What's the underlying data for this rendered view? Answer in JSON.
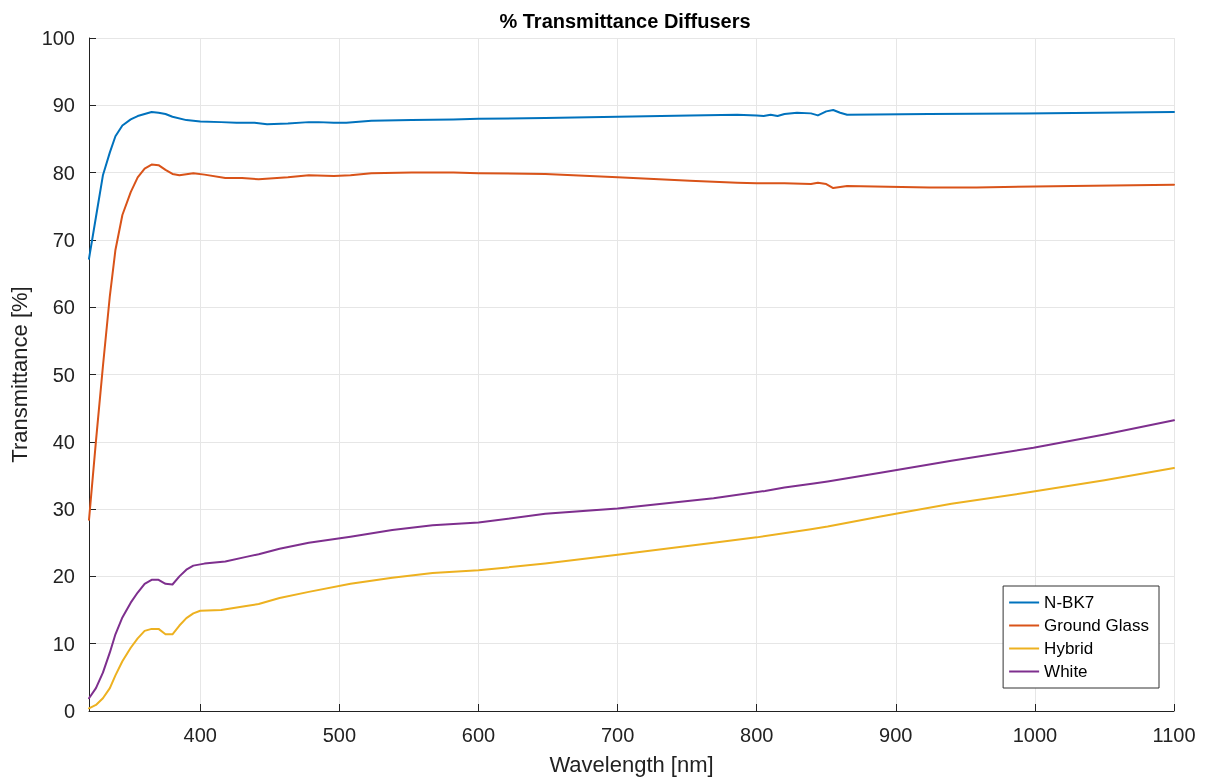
{
  "chart_data": {
    "type": "line",
    "title": "% Transmittance Diffusers",
    "xlabel": "Wavelength [nm]",
    "ylabel": "Transmittance [%]",
    "xlim": [
      320,
      1100
    ],
    "xticks": [
      400,
      500,
      600,
      700,
      800,
      900,
      1000,
      1100
    ],
    "ylim": [
      0,
      100
    ],
    "yticks": [
      0,
      10,
      20,
      30,
      40,
      50,
      60,
      70,
      80,
      90,
      100
    ],
    "grid": true,
    "legend": "bottom right",
    "marker": "none",
    "line_style": "solid",
    "series": [
      {
        "name": "N-BK7",
        "color": "#0072bd",
        "x": [
          320,
          325,
          330,
          335,
          339,
          344,
          350,
          355,
          360,
          365,
          370,
          375,
          380,
          390,
          400,
          415,
          426,
          439,
          448,
          463,
          478,
          485,
          496,
          505,
          523,
          552,
          582,
          600,
          648,
          700,
          752,
          786,
          800,
          805,
          810,
          815,
          820,
          829,
          839,
          844,
          850,
          855,
          860,
          865,
          924,
          992,
          1100
        ],
        "values": [
          67.2,
          73.4,
          79.6,
          83.0,
          85.4,
          87.0,
          87.9,
          88.4,
          88.7,
          89.0,
          88.9,
          88.7,
          88.3,
          87.8,
          87.6,
          87.5,
          87.4,
          87.4,
          87.2,
          87.3,
          87.5,
          87.5,
          87.4,
          87.4,
          87.7,
          87.8,
          87.9,
          88.0,
          88.1,
          88.3,
          88.5,
          88.6,
          88.5,
          88.4,
          88.6,
          88.4,
          88.7,
          88.9,
          88.8,
          88.5,
          89.1,
          89.3,
          88.9,
          88.6,
          88.7,
          88.8,
          89.0
        ]
      },
      {
        "name": "Ground Glass",
        "color": "#d95319",
        "x": [
          320,
          325,
          330,
          335,
          339,
          344,
          350,
          355,
          360,
          365,
          370,
          375,
          380,
          385,
          395,
          403,
          418,
          430,
          442,
          463,
          478,
          496,
          508,
          523,
          552,
          582,
          600,
          648,
          700,
          752,
          786,
          800,
          820,
          839,
          844,
          850,
          855,
          865,
          924,
          958,
          1027,
          1100
        ],
        "values": [
          28.4,
          40.1,
          51.2,
          61.7,
          68.5,
          73.7,
          77.1,
          79.3,
          80.6,
          81.2,
          81.1,
          80.4,
          79.8,
          79.6,
          79.9,
          79.7,
          79.2,
          79.2,
          79.0,
          79.3,
          79.6,
          79.5,
          79.6,
          79.9,
          80.0,
          80.0,
          79.9,
          79.8,
          79.3,
          78.8,
          78.5,
          78.4,
          78.4,
          78.3,
          78.5,
          78.3,
          77.7,
          78.0,
          77.8,
          77.8,
          78.0,
          78.2
        ]
      },
      {
        "name": "Hybrid",
        "color": "#edb120",
        "x": [
          320,
          325,
          330,
          335,
          339,
          344,
          350,
          355,
          360,
          365,
          370,
          375,
          380,
          385,
          390,
          395,
          400,
          415,
          433,
          442,
          457,
          478,
          508,
          538,
          567,
          600,
          648,
          700,
          769,
          800,
          839,
          851,
          889,
          940,
          999,
          1050,
          1100
        ],
        "values": [
          0.4,
          0.9,
          1.9,
          3.4,
          5.3,
          7.4,
          9.4,
          10.8,
          11.9,
          12.2,
          12.2,
          11.4,
          11.4,
          12.7,
          13.8,
          14.5,
          14.9,
          15.0,
          15.6,
          15.9,
          16.8,
          17.7,
          18.9,
          19.8,
          20.5,
          20.9,
          21.9,
          23.2,
          25.0,
          25.8,
          27.0,
          27.4,
          28.9,
          30.8,
          32.6,
          34.3,
          36.1
        ]
      },
      {
        "name": "White",
        "color": "#7e2f8e",
        "x": [
          320,
          325,
          330,
          335,
          339,
          344,
          350,
          355,
          360,
          365,
          370,
          375,
          380,
          385,
          390,
          395,
          403,
          418,
          433,
          442,
          457,
          478,
          508,
          538,
          567,
          600,
          648,
          700,
          769,
          806,
          820,
          841,
          851,
          889,
          940,
          999,
          1050,
          1100
        ],
        "values": [
          1.9,
          3.4,
          5.7,
          8.7,
          11.4,
          13.9,
          16.1,
          17.6,
          18.9,
          19.5,
          19.5,
          18.9,
          18.8,
          20.0,
          21.0,
          21.6,
          21.9,
          22.2,
          22.9,
          23.3,
          24.1,
          25.0,
          25.9,
          26.9,
          27.6,
          28.0,
          29.3,
          30.1,
          31.6,
          32.7,
          33.2,
          33.8,
          34.1,
          35.4,
          37.2,
          39.1,
          41.1,
          43.2
        ]
      }
    ]
  }
}
